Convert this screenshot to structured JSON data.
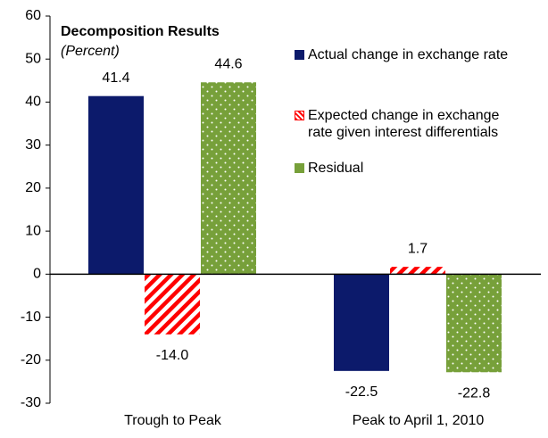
{
  "chart_data": {
    "type": "bar",
    "title": "Decomposition Results",
    "subtitle": "(Percent)",
    "categories": [
      "Trough to Peak",
      "Peak to April 1, 2010"
    ],
    "series": [
      {
        "name": "Actual change in exchange rate",
        "color": "#0c1a6b",
        "values": [
          41.4,
          -22.5
        ]
      },
      {
        "name": "Expected change in exchange rate given interest differentials",
        "color": "#ff0000",
        "values": [
          -14,
          1.7
        ],
        "value_labels": [
          "-14.0",
          "1.7"
        ]
      },
      {
        "name": "Residual",
        "color": "#77a03a",
        "values": [
          44.6,
          -22.8
        ]
      }
    ],
    "ylim": [
      -30,
      60
    ],
    "yticks": [
      -30,
      -20,
      -10,
      0,
      10,
      20,
      30,
      40,
      50,
      60
    ]
  }
}
